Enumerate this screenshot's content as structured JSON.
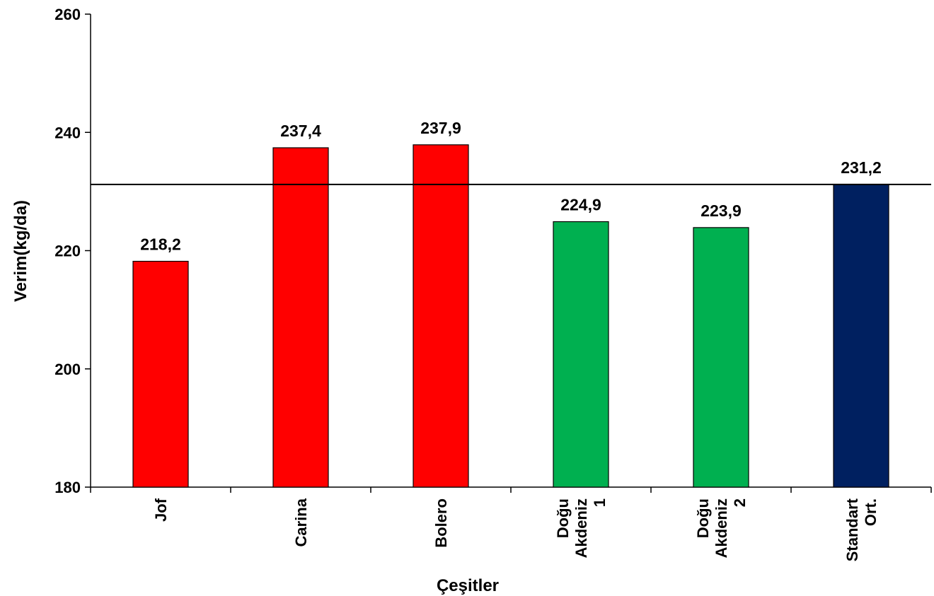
{
  "chart_data": {
    "type": "bar",
    "categories": [
      [
        "Jof"
      ],
      [
        "Carina"
      ],
      [
        "Bolero"
      ],
      [
        "Doğu",
        "Akdeniz",
        "1"
      ],
      [
        "Doğu",
        "Akdeniz",
        "2"
      ],
      [
        "Standart",
        "Ort."
      ]
    ],
    "values": [
      218.2,
      237.4,
      237.9,
      224.9,
      223.9,
      231.2
    ],
    "value_labels": [
      "218,2",
      "237,4",
      "237,9",
      "224,9",
      "223,9",
      "231,2"
    ],
    "bar_colors": [
      "#ff0000",
      "#ff0000",
      "#ff0000",
      "#00b050",
      "#00b050",
      "#002060"
    ],
    "xlabel": "Çeşitler",
    "ylabel": "Verim(kg/da)",
    "ylim": [
      180,
      260
    ],
    "yticks": [
      180,
      200,
      220,
      240,
      260
    ],
    "reference_line": 231.2,
    "grid": false,
    "legend": "none"
  }
}
